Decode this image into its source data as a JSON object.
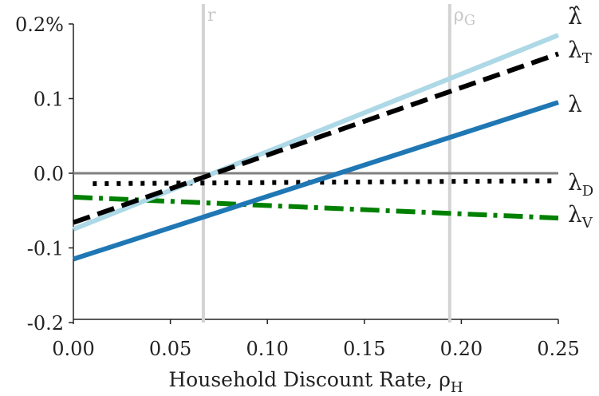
{
  "chart_data": {
    "type": "line",
    "xlabel": "Household Discount Rate, ρH",
    "xlabel_main": "Household Discount Rate, ρ",
    "xlabel_sub": "H",
    "xlim": [
      0.0,
      0.25
    ],
    "ylim": [
      -0.2,
      0.2
    ],
    "x_ticks": [
      0.0,
      0.05,
      0.1,
      0.15,
      0.2,
      0.25
    ],
    "x_tick_labels": [
      "0.00",
      "0.05",
      "0.10",
      "0.15",
      "0.20",
      "0.25"
    ],
    "y_ticks": [
      -0.2,
      -0.1,
      0.0,
      0.1,
      0.2
    ],
    "y_tick_labels": [
      "-0.2",
      "-0.1",
      "0.0",
      "0.1",
      "0.2%"
    ],
    "grid": false,
    "zero_line": 0.0,
    "vertical_lines": [
      {
        "x": 0.067,
        "label": "r",
        "label_main": "r",
        "label_sub": "",
        "color": "#d3d3d3"
      },
      {
        "x": 0.194,
        "label": "ρG",
        "label_main": "ρ",
        "label_sub": "G",
        "color": "#d3d3d3"
      }
    ],
    "series": [
      {
        "name": "λ̂",
        "label_main": "λ̂",
        "label_sub": "",
        "color": "#add8e6",
        "dash": "solid",
        "x": [
          0.0,
          0.25
        ],
        "y": [
          -0.075,
          0.185
        ]
      },
      {
        "name": "λT",
        "label_main": "λ",
        "label_sub": "T",
        "color": "#000000",
        "dash": "dashed",
        "x": [
          0.0,
          0.25
        ],
        "y": [
          -0.066,
          0.16
        ]
      },
      {
        "name": "λ",
        "label_main": "λ",
        "label_sub": "",
        "color": "#1f77b4",
        "dash": "solid",
        "x": [
          0.0,
          0.25
        ],
        "y": [
          -0.115,
          0.095
        ]
      },
      {
        "name": "λD",
        "label_main": "λ",
        "label_sub": "D",
        "color": "#000000",
        "dash": "dotted",
        "x": [
          0.01,
          0.25
        ],
        "y": [
          -0.014,
          -0.01
        ]
      },
      {
        "name": "λV",
        "label_main": "λ",
        "label_sub": "V",
        "color": "#008000",
        "dash": "dashdot",
        "x": [
          0.0,
          0.25
        ],
        "y": [
          -0.032,
          -0.06
        ]
      }
    ]
  }
}
